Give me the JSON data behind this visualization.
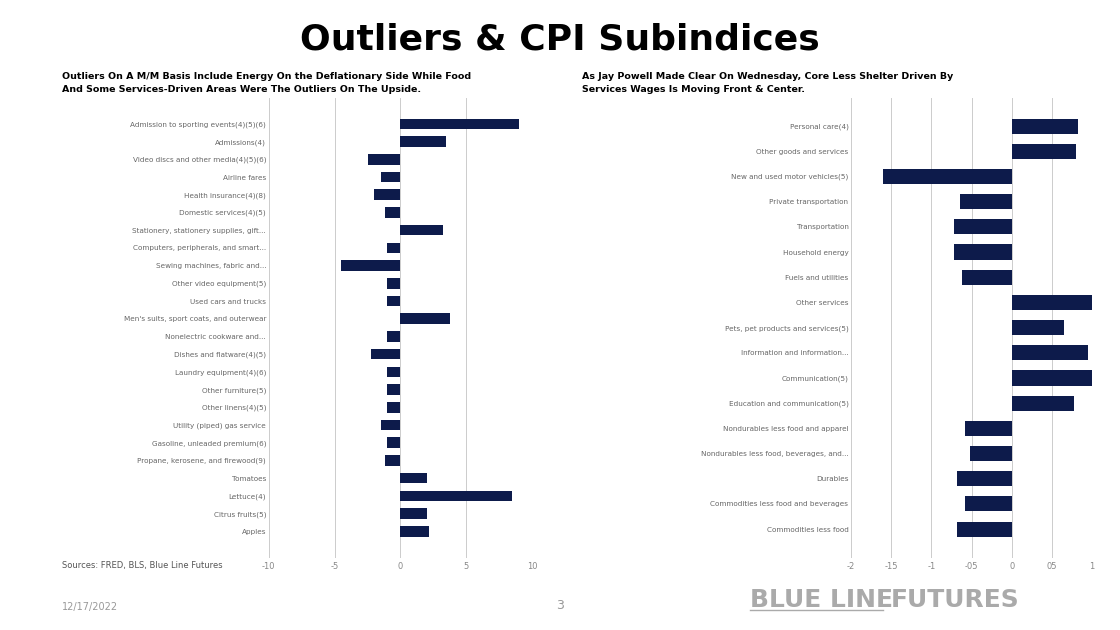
{
  "title": "Outliers & CPI Subindices",
  "title_fontsize": 26,
  "bar_color": "#0d1b4b",
  "background_color": "#ffffff",
  "left_subtitle": "Outliers On A M/M Basis Include Energy On the Deflationary Side While Food\nAnd Some Services-Driven Areas Were The Outliers On The Upside.",
  "right_subtitle": "As Jay Powell Made Clear On Wednesday, Core Less Shelter Driven By\nServices Wages Is Moving Front & Center.",
  "left_categories": [
    "Admission to sporting events(4)(5)(6)",
    "Admissions(4)",
    "Video discs and other media(4)(5)(6)",
    "Airline fares",
    "Health insurance(4)(8)",
    "Domestic services(4)(5)",
    "Stationery, stationery supplies, gift...",
    "Computers, peripherals, and smart...",
    "Sewing machines, fabric and...",
    "Other video equipment(5)",
    "Used cars and trucks",
    "Men's suits, sport coats, and outerwear",
    "Nonelectric cookware and...",
    "Dishes and flatware(4)(5)",
    "Laundry equipment(4)(6)",
    "Other furniture(5)",
    "Other linens(4)(5)",
    "Utility (piped) gas service",
    "Gasoline, unleaded premium(6)",
    "Propane, kerosene, and firewood(9)",
    "Tomatoes",
    "Lettuce(4)",
    "Citrus fruits(5)",
    "Apples"
  ],
  "left_values": [
    9.0,
    3.5,
    -2.5,
    -1.5,
    -2.0,
    -1.2,
    3.2,
    -1.0,
    -4.5,
    -1.0,
    -1.0,
    3.8,
    -1.0,
    -2.2,
    -1.0,
    -1.0,
    -1.0,
    -1.5,
    -1.0,
    -1.2,
    2.0,
    8.5,
    2.0,
    2.2
  ],
  "left_xlim": [
    -10,
    10
  ],
  "left_xticks": [
    -10,
    -5,
    0,
    5,
    10
  ],
  "left_xticklabels": [
    "-10",
    "-5",
    "0",
    "5",
    "10"
  ],
  "right_categories": [
    "Personal care(4)",
    "Other goods and services",
    "New and used motor vehicles(5)",
    "Private transportation",
    "Transportation",
    "Household energy",
    "Fuels and utilities",
    "Other services",
    "Pets, pet products and services(5)",
    "Information and information...",
    "Communication(5)",
    "Education and communication(5)",
    "Nondurables less food and apparel",
    "Nondurables less food, beverages, and...",
    "Durables",
    "Commodities less food and beverages",
    "Commodities less food"
  ],
  "right_values": [
    0.82,
    0.8,
    -1.6,
    -0.65,
    -0.72,
    -0.72,
    -0.62,
    1.02,
    0.65,
    0.95,
    1.0,
    0.78,
    -0.58,
    -0.52,
    -0.68,
    -0.58,
    -0.68
  ],
  "right_xlim": [
    -2,
    1
  ],
  "right_xticks": [
    -2,
    -1.5,
    -1,
    -0.5,
    0,
    0.5,
    1
  ],
  "right_xticklabels": [
    "-2",
    "-15",
    "-1",
    "-05",
    "0",
    "05",
    "1"
  ],
  "source_text": "Sources: FRED, BLS, Blue Line Futures",
  "date_text": "12/17/2022",
  "page_number": "3",
  "footer_blue": "BLUE LINE",
  "footer_futures": "FUTURES"
}
